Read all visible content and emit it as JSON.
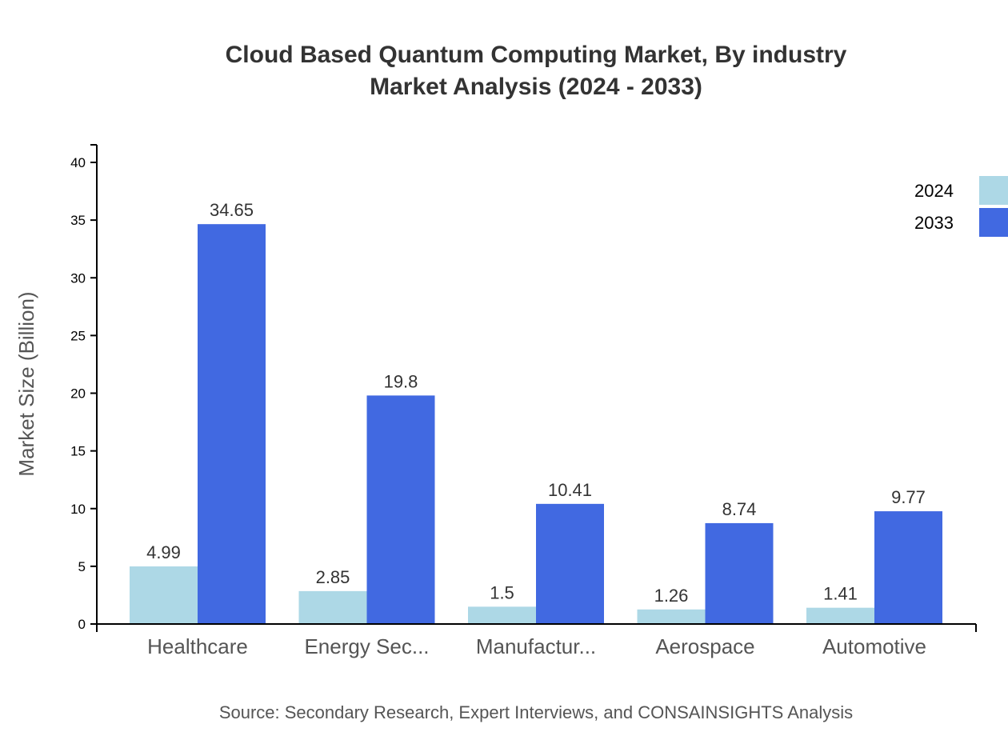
{
  "chart_data": {
    "type": "bar",
    "title": "Cloud Based Quantum Computing Market, By industry",
    "subtitle": "Market Analysis (2024 - 2033)",
    "xlabel": "",
    "ylabel": "Market Size (Billion)",
    "ylim": [
      0,
      41.5
    ],
    "yticks": [
      0,
      5,
      10,
      15,
      20,
      25,
      30,
      35,
      40
    ],
    "categories": [
      "Healthcare",
      "Energy Sec...",
      "Manufactur...",
      "Aerospace",
      "Automotive"
    ],
    "series": [
      {
        "name": "2024",
        "color": "#add8e6",
        "values": [
          4.99,
          2.85,
          1.5,
          1.26,
          1.41
        ]
      },
      {
        "name": "2033",
        "color": "#4169e1",
        "values": [
          34.65,
          19.8,
          10.41,
          8.74,
          9.77
        ]
      }
    ],
    "legend": "top-right",
    "grid": false,
    "source": "Source: Secondary Research, Expert Interviews, and CONSAINSIGHTS Analysis"
  }
}
